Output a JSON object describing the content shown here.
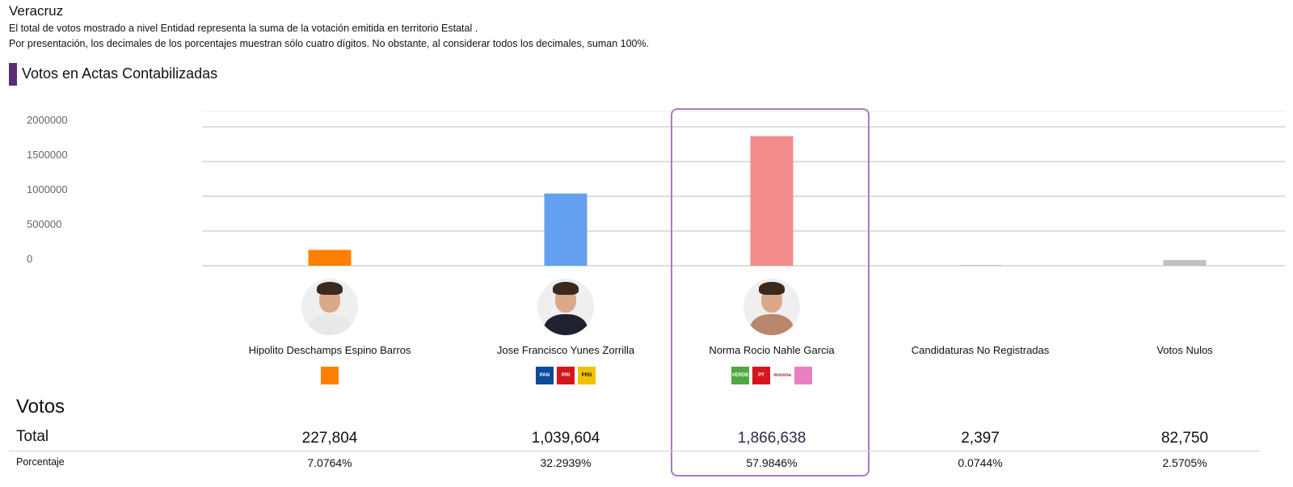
{
  "header": {
    "state": "Veracruz",
    "note_1": "El total de votos mostrado a nivel Entidad representa la suma de la votación emitida en territorio Estatal .",
    "note_2": "Por presentación, los decimales de los porcentajes muestran sólo cuatro dígitos. No obstante, al considerar todos los decimales, suman 100%.",
    "section_title": "Votos en Actas Contabilizadas"
  },
  "chart_data": {
    "type": "bar",
    "categories": [
      "Hipolito Deschamps Espino Barros",
      "Jose Francisco Yunes Zorrilla",
      "Norma Rocio Nahle Garcia",
      "Candidaturas No Registradas",
      "Votos Nulos"
    ],
    "values": [
      227804,
      1039604,
      1866638,
      2397,
      82750
    ],
    "colors": [
      "#ff8000",
      "#64a0f0",
      "#f28c8c",
      "#c8c8c8",
      "#c0c0c0"
    ],
    "yticks": [
      "2000000",
      "1500000",
      "1000000",
      "500000",
      "0"
    ],
    "ylim": [
      0,
      2000000
    ],
    "grid": true,
    "highlighted_index": 2
  },
  "candidates": [
    {
      "name": "Hipolito Deschamps Espino Barros",
      "has_photo": true,
      "suit_color": "#e8e8e8",
      "logos": [
        {
          "name": "movimiento-ciudadano-logo",
          "text": "",
          "color": "#ff8000"
        }
      ]
    },
    {
      "name": "Jose Francisco Yunes Zorrilla",
      "has_photo": true,
      "suit_color": "#1e2230",
      "logos": [
        {
          "name": "pan-logo",
          "text": "PAN",
          "color": "#0b4a9c"
        },
        {
          "name": "pri-logo",
          "text": "PRI",
          "color": "#d5161f"
        },
        {
          "name": "prd-logo",
          "text": "PRD",
          "color": "#f2c200"
        }
      ]
    },
    {
      "name": "Norma Rocio Nahle Garcia",
      "has_photo": true,
      "suit_color": "#b9876b",
      "logos": [
        {
          "name": "verde-logo",
          "text": "VERDE",
          "color": "#4fa83d"
        },
        {
          "name": "pt-logo",
          "text": "PT",
          "color": "#d5161f"
        },
        {
          "name": "morena-logo",
          "text": "morena",
          "color": "#ffffff"
        },
        {
          "name": "fxm-logo",
          "text": "",
          "color": "#e97fc0"
        }
      ]
    },
    {
      "name": "Candidaturas No Registradas",
      "has_photo": false,
      "logos": []
    },
    {
      "name": "Votos Nulos",
      "has_photo": false,
      "logos": []
    }
  ],
  "results": {
    "votes_heading": "Votos",
    "total_label": "Total",
    "pct_label": "Porcentaje",
    "totals": [
      "227,804",
      "1,039,604",
      "1,866,638",
      "2,397",
      "82,750"
    ],
    "percentages": [
      "7.0764%",
      "32.2939%",
      "57.9846%",
      "0.0744%",
      "2.5705%"
    ]
  }
}
